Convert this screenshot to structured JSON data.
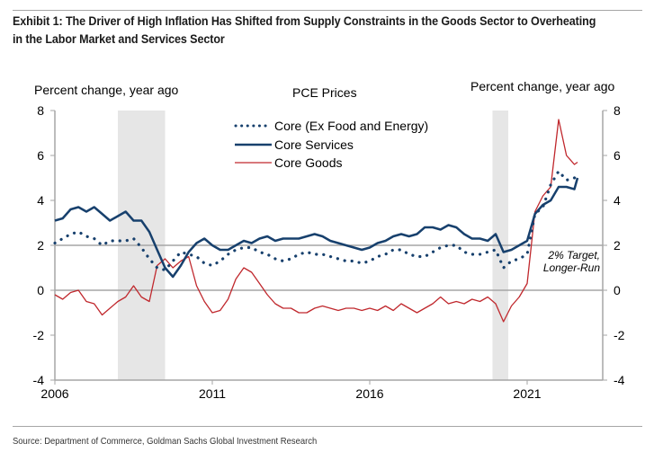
{
  "header": {
    "title": "Exhibit 1: The Driver of High Inflation Has Shifted from Supply Constraints in the Goods Sector to Overheating in the Labor Market and Services Sector"
  },
  "footer": {
    "source": "Source: Department of Commerce, Goldman Sachs Global Investment Research"
  },
  "chart_data": {
    "type": "line",
    "title": "PCE Prices",
    "ylabel_left": "Percent change, year ago",
    "ylabel_right": "Percent change, year ago",
    "xlabel": "",
    "xlim": [
      2006,
      2023.4
    ],
    "ylim": [
      -4,
      8
    ],
    "xticks": [
      2006,
      2011,
      2016,
      2021
    ],
    "xtick_labels": [
      "2006",
      "2011",
      "2016",
      "2021"
    ],
    "yticks": [
      -4,
      -2,
      0,
      2,
      4,
      6,
      8
    ],
    "ytick_labels": [
      "-4",
      "-2",
      "0",
      "2",
      "4",
      "6",
      "8"
    ],
    "reference_lines": [
      0,
      2
    ],
    "annotation": "2% Target, Longer-Run",
    "recessions": [
      [
        2008.0,
        2009.5
      ],
      [
        2019.9,
        2020.4
      ]
    ],
    "legend": {
      "position": "top-center",
      "entries": [
        "Core (Ex Food and Energy)",
        "Core Services",
        "Core Goods"
      ]
    },
    "series": [
      {
        "name": "Core (Ex Food and Energy)",
        "style": "dotted",
        "color": "#17406d",
        "x": [
          2006.0,
          2006.25,
          2006.5,
          2006.75,
          2007.0,
          2007.25,
          2007.5,
          2007.75,
          2008.0,
          2008.25,
          2008.5,
          2008.75,
          2009.0,
          2009.25,
          2009.5,
          2009.75,
          2010.0,
          2010.25,
          2010.5,
          2010.75,
          2011.0,
          2011.25,
          2011.5,
          2011.75,
          2012.0,
          2012.25,
          2012.5,
          2012.75,
          2013.0,
          2013.25,
          2013.5,
          2013.75,
          2014.0,
          2014.25,
          2014.5,
          2014.75,
          2015.0,
          2015.25,
          2015.5,
          2015.75,
          2016.0,
          2016.25,
          2016.5,
          2016.75,
          2017.0,
          2017.25,
          2017.5,
          2017.75,
          2018.0,
          2018.25,
          2018.5,
          2018.75,
          2019.0,
          2019.25,
          2019.5,
          2019.75,
          2020.0,
          2020.25,
          2020.5,
          2020.75,
          2021.0,
          2021.25,
          2021.5,
          2021.75,
          2022.0,
          2022.25,
          2022.5,
          2022.6
        ],
        "values": [
          2.1,
          2.3,
          2.5,
          2.6,
          2.4,
          2.3,
          2.0,
          2.2,
          2.2,
          2.2,
          2.3,
          1.9,
          1.4,
          1.0,
          0.9,
          1.3,
          1.7,
          1.6,
          1.5,
          1.2,
          1.1,
          1.3,
          1.6,
          1.8,
          1.9,
          1.9,
          1.7,
          1.6,
          1.4,
          1.3,
          1.4,
          1.6,
          1.7,
          1.6,
          1.6,
          1.5,
          1.4,
          1.3,
          1.3,
          1.2,
          1.3,
          1.5,
          1.6,
          1.8,
          1.8,
          1.6,
          1.5,
          1.5,
          1.7,
          1.9,
          2.0,
          2.0,
          1.7,
          1.6,
          1.6,
          1.7,
          1.8,
          1.0,
          1.3,
          1.4,
          1.6,
          3.4,
          3.7,
          4.7,
          5.3,
          4.9,
          5.0,
          5.1
        ]
      },
      {
        "name": "Core Services",
        "style": "solid",
        "color": "#17406d",
        "x": [
          2006.0,
          2006.25,
          2006.5,
          2006.75,
          2007.0,
          2007.25,
          2007.5,
          2007.75,
          2008.0,
          2008.25,
          2008.5,
          2008.75,
          2009.0,
          2009.25,
          2009.5,
          2009.75,
          2010.0,
          2010.25,
          2010.5,
          2010.75,
          2011.0,
          2011.25,
          2011.5,
          2011.75,
          2012.0,
          2012.25,
          2012.5,
          2012.75,
          2013.0,
          2013.25,
          2013.5,
          2013.75,
          2014.0,
          2014.25,
          2014.5,
          2014.75,
          2015.0,
          2015.25,
          2015.5,
          2015.75,
          2016.0,
          2016.25,
          2016.5,
          2016.75,
          2017.0,
          2017.25,
          2017.5,
          2017.75,
          2018.0,
          2018.25,
          2018.5,
          2018.75,
          2019.0,
          2019.25,
          2019.5,
          2019.75,
          2020.0,
          2020.25,
          2020.5,
          2020.75,
          2021.0,
          2021.25,
          2021.5,
          2021.75,
          2022.0,
          2022.25,
          2022.5,
          2022.6
        ],
        "values": [
          3.1,
          3.2,
          3.6,
          3.7,
          3.5,
          3.7,
          3.4,
          3.1,
          3.3,
          3.5,
          3.1,
          3.1,
          2.6,
          1.8,
          1.0,
          0.6,
          1.1,
          1.7,
          2.1,
          2.3,
          2.0,
          1.8,
          1.8,
          2.0,
          2.2,
          2.1,
          2.3,
          2.4,
          2.2,
          2.3,
          2.3,
          2.3,
          2.4,
          2.5,
          2.4,
          2.2,
          2.1,
          2.0,
          1.9,
          1.8,
          1.9,
          2.1,
          2.2,
          2.4,
          2.5,
          2.4,
          2.5,
          2.8,
          2.8,
          2.7,
          2.9,
          2.8,
          2.5,
          2.3,
          2.3,
          2.2,
          2.5,
          1.7,
          1.8,
          2.0,
          2.2,
          3.4,
          3.8,
          4.0,
          4.6,
          4.6,
          4.5,
          5.0
        ]
      },
      {
        "name": "Core Goods",
        "style": "solid",
        "color": "#c0282d",
        "x": [
          2006.0,
          2006.25,
          2006.5,
          2006.75,
          2007.0,
          2007.25,
          2007.5,
          2007.75,
          2008.0,
          2008.25,
          2008.5,
          2008.75,
          2009.0,
          2009.25,
          2009.5,
          2009.75,
          2010.0,
          2010.25,
          2010.5,
          2010.75,
          2011.0,
          2011.25,
          2011.5,
          2011.75,
          2012.0,
          2012.25,
          2012.5,
          2012.75,
          2013.0,
          2013.25,
          2013.5,
          2013.75,
          2014.0,
          2014.25,
          2014.5,
          2014.75,
          2015.0,
          2015.25,
          2015.5,
          2015.75,
          2016.0,
          2016.25,
          2016.5,
          2016.75,
          2017.0,
          2017.25,
          2017.5,
          2017.75,
          2018.0,
          2018.25,
          2018.5,
          2018.75,
          2019.0,
          2019.25,
          2019.5,
          2019.75,
          2020.0,
          2020.25,
          2020.5,
          2020.75,
          2021.0,
          2021.25,
          2021.5,
          2021.75,
          2022.0,
          2022.25,
          2022.5,
          2022.6
        ],
        "values": [
          -0.2,
          -0.4,
          -0.1,
          0.0,
          -0.5,
          -0.6,
          -1.1,
          -0.8,
          -0.5,
          -0.3,
          0.2,
          -0.3,
          -0.5,
          1.1,
          1.4,
          1.0,
          1.3,
          1.5,
          0.2,
          -0.5,
          -1.0,
          -0.9,
          -0.4,
          0.5,
          1.0,
          0.8,
          0.3,
          -0.2,
          -0.6,
          -0.8,
          -0.8,
          -1.0,
          -1.0,
          -0.8,
          -0.7,
          -0.8,
          -0.9,
          -0.8,
          -0.8,
          -0.9,
          -0.8,
          -0.9,
          -0.7,
          -0.9,
          -0.6,
          -0.8,
          -1.0,
          -0.8,
          -0.6,
          -0.3,
          -0.6,
          -0.5,
          -0.6,
          -0.4,
          -0.5,
          -0.3,
          -0.6,
          -1.4,
          -0.7,
          -0.3,
          0.3,
          3.5,
          4.2,
          4.6,
          7.6,
          6.0,
          5.6,
          5.7
        ]
      }
    ]
  }
}
